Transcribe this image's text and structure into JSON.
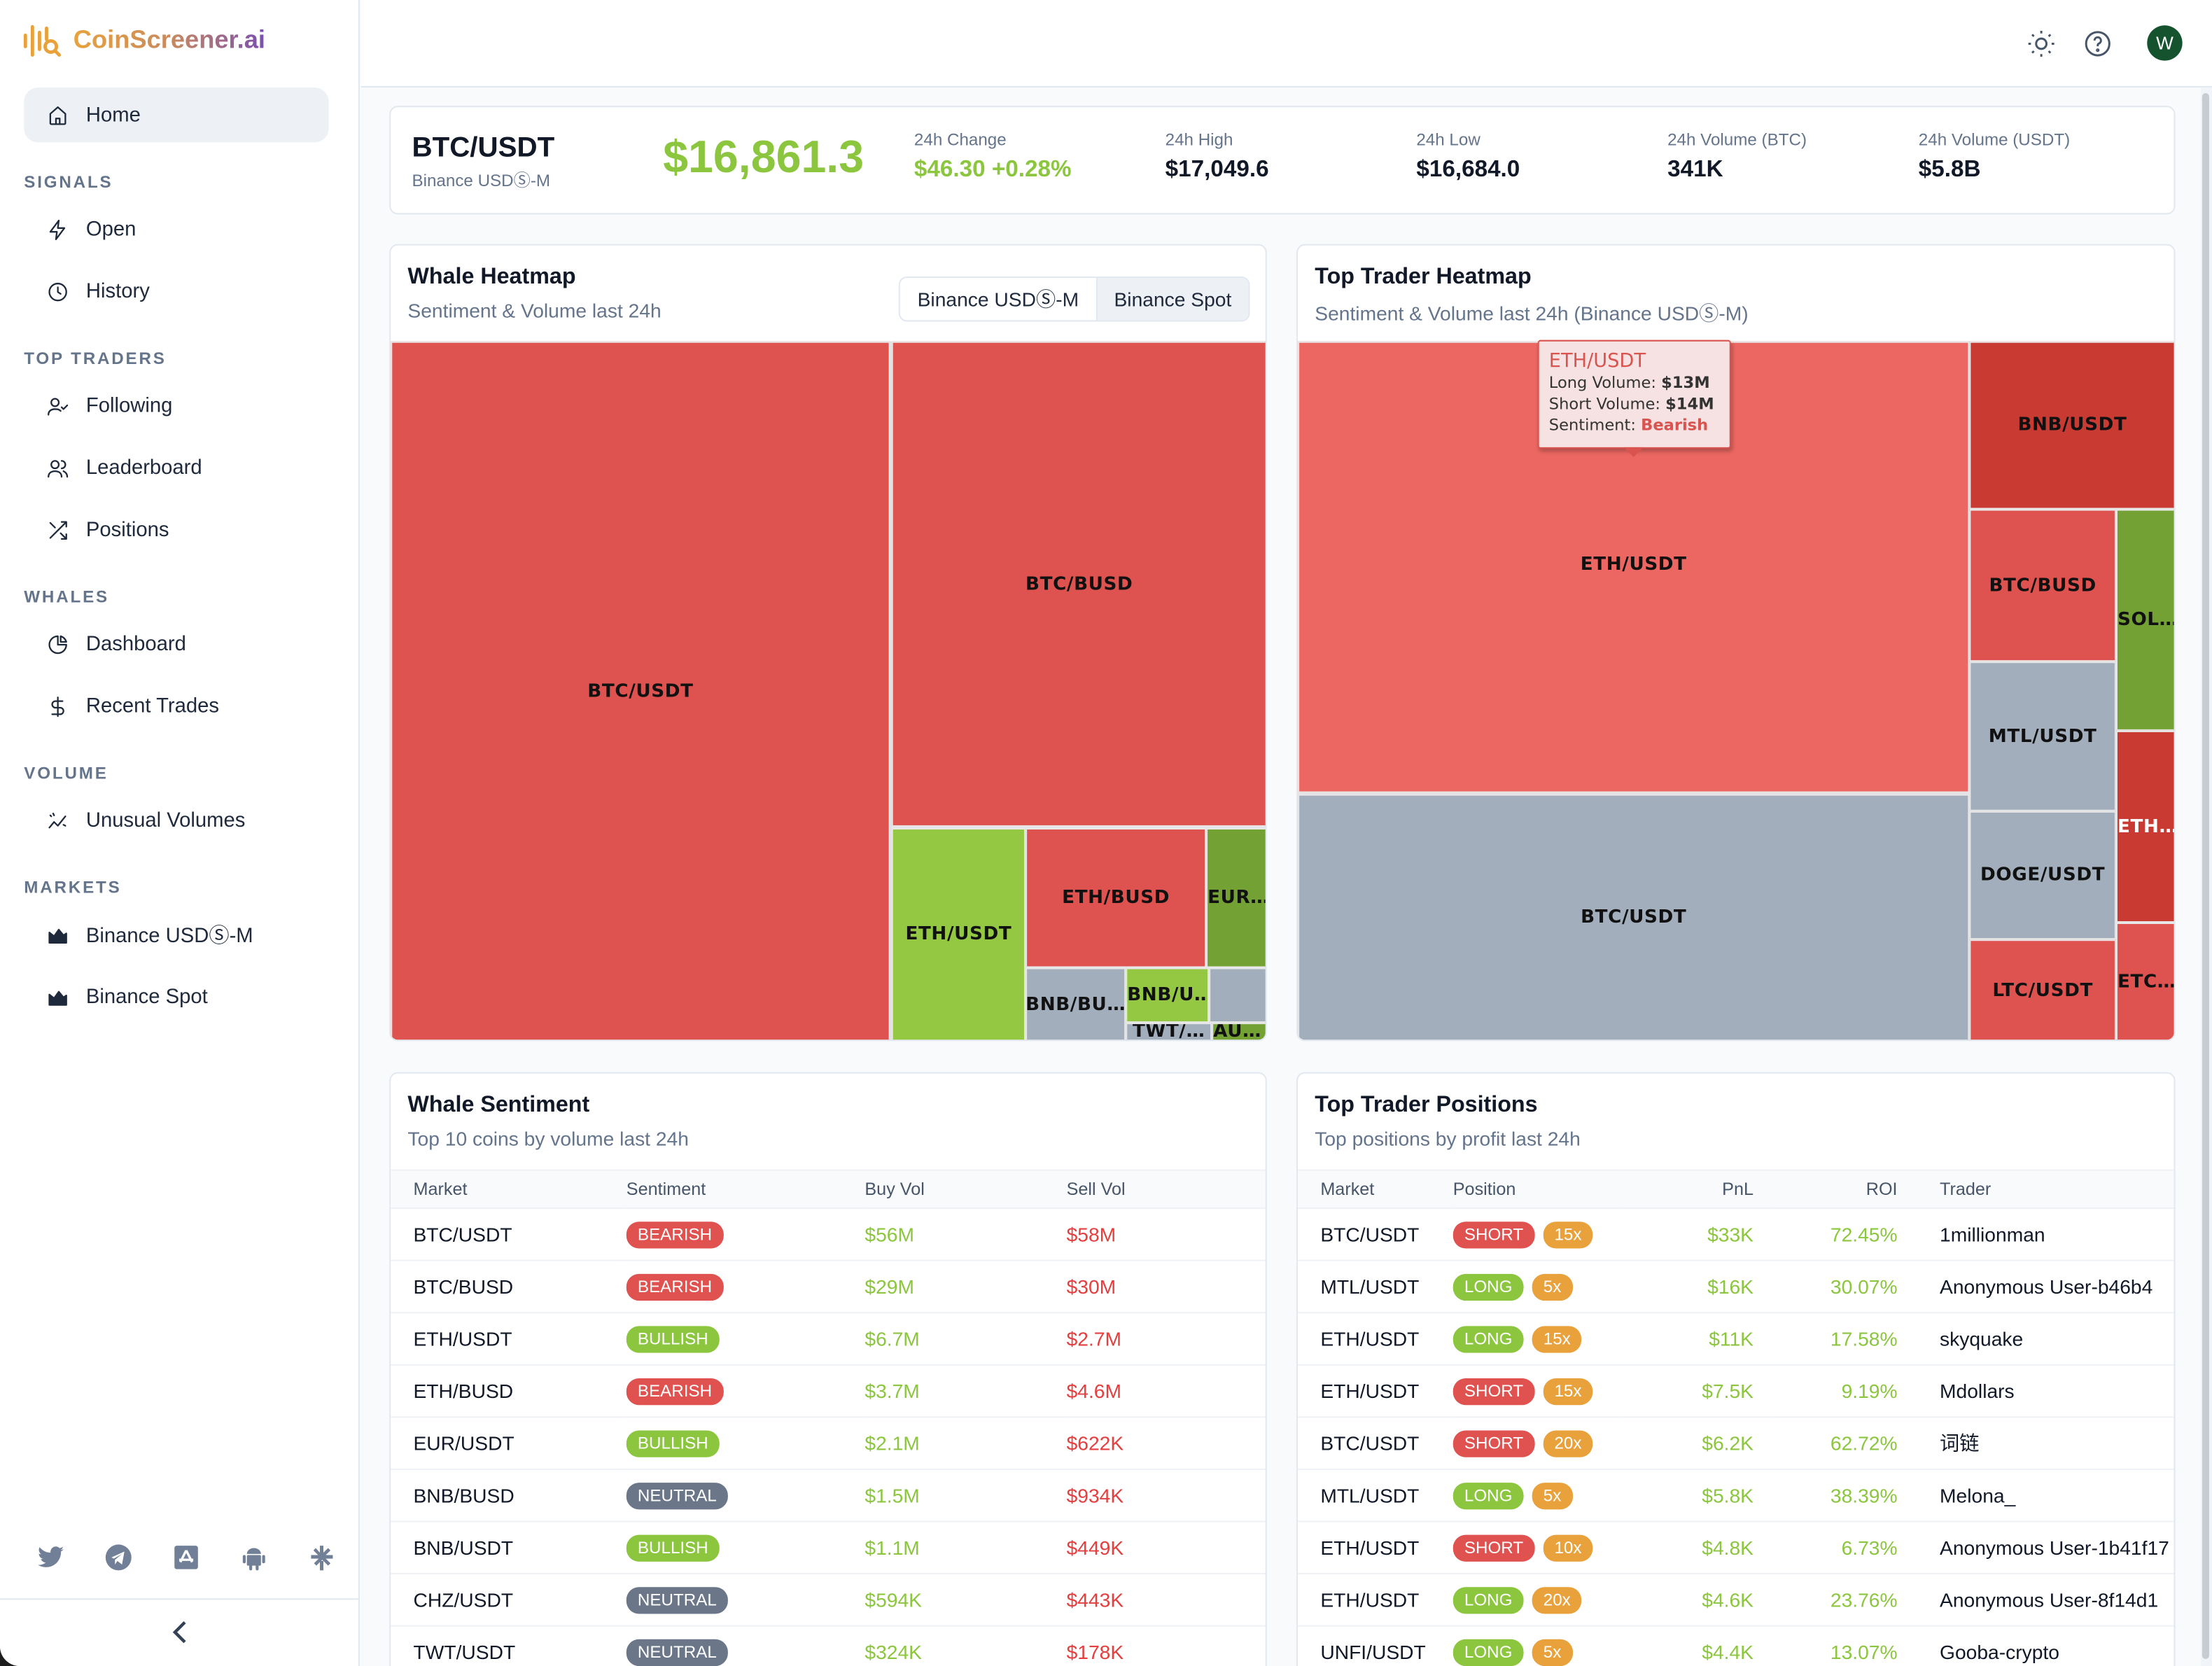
{
  "brand": {
    "name": "CoinScreener.ai",
    "colors": {
      "orange": "#e9a23b",
      "purple": "#7b4fb0"
    }
  },
  "sidebar": {
    "home": "Home",
    "sections": [
      {
        "title": "SIGNALS",
        "items": [
          {
            "label": "Open",
            "icon": "lightning-icon"
          },
          {
            "label": "History",
            "icon": "clock-icon"
          }
        ]
      },
      {
        "title": "TOP TRADERS",
        "items": [
          {
            "label": "Following",
            "icon": "user-check-icon"
          },
          {
            "label": "Leaderboard",
            "icon": "users-icon"
          },
          {
            "label": "Positions",
            "icon": "shuffle-icon"
          }
        ]
      },
      {
        "title": "WHALES",
        "items": [
          {
            "label": "Dashboard",
            "icon": "pie-chart-icon"
          },
          {
            "label": "Recent Trades",
            "icon": "dollar-icon"
          }
        ]
      },
      {
        "title": "VOLUME",
        "items": [
          {
            "label": "Unusual Volumes",
            "icon": "sparkline-icon"
          }
        ]
      },
      {
        "title": "MARKETS",
        "items": [
          {
            "label": "Binance USDⓈ-M",
            "icon": "chart-area-icon"
          },
          {
            "label": "Binance Spot",
            "icon": "chart-area-icon"
          }
        ]
      }
    ],
    "social": [
      "twitter-icon",
      "telegram-icon",
      "app-store-icon",
      "android-icon",
      "linktree-icon"
    ]
  },
  "topbar": {
    "avatar": "W",
    "icons": [
      "sun-icon",
      "help-icon"
    ]
  },
  "ticker": {
    "pair": "BTC/USDT",
    "exchange": "Binance USDⓈ-M",
    "price": "$16,861.3",
    "stats": [
      {
        "label": "24h Change",
        "value": "$46.30 +0.28%",
        "positive": true
      },
      {
        "label": "24h High",
        "value": "$17,049.6"
      },
      {
        "label": "24h Low",
        "value": "$16,684.0"
      },
      {
        "label": "24h Volume (BTC)",
        "value": "341K"
      },
      {
        "label": "24h Volume (USDT)",
        "value": "$5.8B"
      }
    ]
  },
  "whale_heatmap": {
    "title": "Whale Heatmap",
    "subtitle": "Sentiment & Volume last 24h",
    "tabs": [
      "Binance USDⓈ-M",
      "Binance Spot"
    ],
    "selected_tab": "Binance Spot",
    "cells": [
      "BTC/USDT",
      "BTC/BUSD",
      "ETH/USDT",
      "ETH/BUSD",
      "EUR…",
      "BNB/BU…",
      "BNB/U…",
      "",
      "TWT/…",
      "AU…"
    ],
    "colors": {
      "bearish": "#de524f",
      "bullish": "#94c843",
      "strong_bullish": "#74a134",
      "neutral": "#a3aebd"
    }
  },
  "trader_heatmap": {
    "title": "Top Trader Heatmap",
    "subtitle": "Sentiment & Volume last 24h (Binance USDⓈ-M)",
    "cells": [
      "ETH/USDT",
      "BTC/USDT",
      "BNB/USDT",
      "BTC/BUSD",
      "MTL/USDT",
      "DOGE/USDT",
      "LTC/USDT",
      "SOL…",
      "ETH…",
      "ETC…"
    ],
    "tooltip": {
      "title": "ETH/USDT",
      "long_label": "Long Volume:",
      "long": "$13M",
      "short_label": "Short Volume:",
      "short": "$14M",
      "sentiment_label": "Sentiment:",
      "sentiment": "Bearish"
    },
    "colors": {
      "light_bearish": "#ec6762",
      "bearish": "#de524f",
      "strong_bearish": "#c93a32",
      "neutral": "#a3aebd",
      "bullish": "#74a134"
    }
  },
  "whale_sentiment": {
    "title": "Whale Sentiment",
    "subtitle": "Top 10 coins by volume last 24h",
    "columns": [
      "Market",
      "Sentiment",
      "Buy Vol",
      "Sell Vol"
    ],
    "rows": [
      [
        "BTC/USDT",
        "BEARISH",
        "$56M",
        "$58M"
      ],
      [
        "BTC/BUSD",
        "BEARISH",
        "$29M",
        "$30M"
      ],
      [
        "ETH/USDT",
        "BULLISH",
        "$6.7M",
        "$2.7M"
      ],
      [
        "ETH/BUSD",
        "BEARISH",
        "$3.7M",
        "$4.6M"
      ],
      [
        "EUR/USDT",
        "BULLISH",
        "$2.1M",
        "$622K"
      ],
      [
        "BNB/BUSD",
        "NEUTRAL",
        "$1.5M",
        "$934K"
      ],
      [
        "BNB/USDT",
        "BULLISH",
        "$1.1M",
        "$449K"
      ],
      [
        "CHZ/USDT",
        "NEUTRAL",
        "$594K",
        "$443K"
      ],
      [
        "TWT/USDT",
        "NEUTRAL",
        "$324K",
        "$178K"
      ]
    ]
  },
  "trader_positions": {
    "title": "Top Trader Positions",
    "subtitle": "Top positions by profit last 24h",
    "columns": [
      "Market",
      "Position",
      "PnL",
      "ROI",
      "Trader"
    ],
    "rows": [
      [
        "BTC/USDT",
        "SHORT",
        "15x",
        "$33K",
        "72.45%",
        "1millionman"
      ],
      [
        "MTL/USDT",
        "LONG",
        "5x",
        "$16K",
        "30.07%",
        "Anonymous User-b46b4"
      ],
      [
        "ETH/USDT",
        "LONG",
        "15x",
        "$11K",
        "17.58%",
        "skyquake"
      ],
      [
        "ETH/USDT",
        "SHORT",
        "15x",
        "$7.5K",
        "9.19%",
        "Mdollars"
      ],
      [
        "BTC/USDT",
        "SHORT",
        "20x",
        "$6.2K",
        "62.72%",
        "词链"
      ],
      [
        "MTL/USDT",
        "LONG",
        "5x",
        "$5.8K",
        "38.39%",
        "Melona_"
      ],
      [
        "ETH/USDT",
        "SHORT",
        "10x",
        "$4.8K",
        "6.73%",
        "Anonymous User-1b41f17"
      ],
      [
        "ETH/USDT",
        "LONG",
        "20x",
        "$4.6K",
        "23.76%",
        "Anonymous User-8f14d1"
      ],
      [
        "UNFI/USDT",
        "LONG",
        "5x",
        "$4.4K",
        "13.07%",
        "Gooba-crypto"
      ]
    ]
  }
}
